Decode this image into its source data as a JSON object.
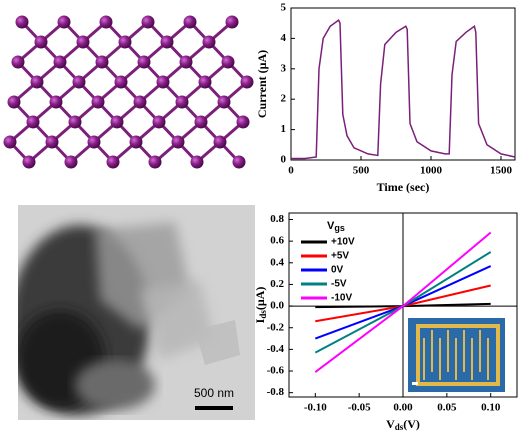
{
  "chart_data": [
    {
      "type": "line",
      "x_label": "Time (sec)",
      "y_label": "Current (μA)",
      "xlim": [
        0,
        1600
      ],
      "xticks": [
        0,
        500,
        1000,
        1500
      ],
      "ylim": [
        0,
        5
      ],
      "yticks": [
        0,
        1,
        2,
        3,
        4,
        5
      ],
      "series": [
        {
          "color": "#7b1f7a",
          "x": [
            0,
            100,
            180,
            200,
            230,
            280,
            340,
            350,
            370,
            400,
            450,
            550,
            620,
            640,
            670,
            750,
            820,
            830,
            850,
            900,
            1000,
            1100,
            1130,
            1150,
            1180,
            1250,
            1310,
            1320,
            1340,
            1400,
            1500,
            1600
          ],
          "values": [
            0.05,
            0.05,
            0.1,
            3.0,
            4.0,
            4.4,
            4.6,
            4.5,
            1.5,
            0.8,
            0.4,
            0.2,
            0.15,
            2.5,
            3.8,
            4.2,
            4.4,
            4.3,
            1.2,
            0.6,
            0.3,
            0.2,
            0.2,
            2.8,
            3.9,
            4.2,
            4.4,
            4.2,
            1.2,
            0.5,
            0.2,
            0.1
          ]
        }
      ]
    },
    {
      "type": "line",
      "x_label": {
        "main": "V",
        "sub": "ds",
        "unit": "(V)"
      },
      "y_label": {
        "main": "I",
        "sub": "ds",
        "unit": "(μA)"
      },
      "legend_title": {
        "main": "V",
        "sub": "gs"
      },
      "legend": "upper left",
      "xlim": [
        -0.13,
        0.13
      ],
      "xticks": [
        {
          "value": -0.1,
          "label": "-0.10"
        },
        {
          "value": -0.05,
          "label": "-0.05"
        },
        {
          "value": 0,
          "label": "0.00"
        },
        {
          "value": 0.05,
          "label": "0.05"
        },
        {
          "value": 0.1,
          "label": "0.10"
        }
      ],
      "ylim": [
        -0.84,
        0.86
      ],
      "yticks": [
        -0.8,
        -0.6,
        -0.4,
        -0.2,
        {
          "value": 0,
          "label": "0.0"
        },
        0.2,
        0.4,
        0.6,
        0.8
      ],
      "series": [
        {
          "name": "+10V",
          "color": "#000000",
          "x": [
            -0.1,
            0,
            0.1
          ],
          "values": [
            -0.01,
            0,
            0.02
          ]
        },
        {
          "name": "+5V",
          "color": "#ff0000",
          "x": [
            -0.1,
            0,
            0.1
          ],
          "values": [
            -0.14,
            0,
            0.19
          ]
        },
        {
          "name": "0V",
          "color": "#0000ff",
          "x": [
            -0.1,
            0,
            0.1
          ],
          "values": [
            -0.3,
            0,
            0.37
          ]
        },
        {
          "name": "-5V",
          "color": "#008080",
          "x": [
            -0.1,
            0,
            0.1
          ],
          "values": [
            -0.43,
            0,
            0.5
          ]
        },
        {
          "name": "-10V",
          "color": "#ff00ff",
          "x": [
            -0.1,
            0,
            0.1
          ],
          "values": [
            -0.61,
            0,
            0.68
          ]
        }
      ]
    }
  ],
  "tem_image": {
    "scale_bar_label": "500 nm"
  }
}
